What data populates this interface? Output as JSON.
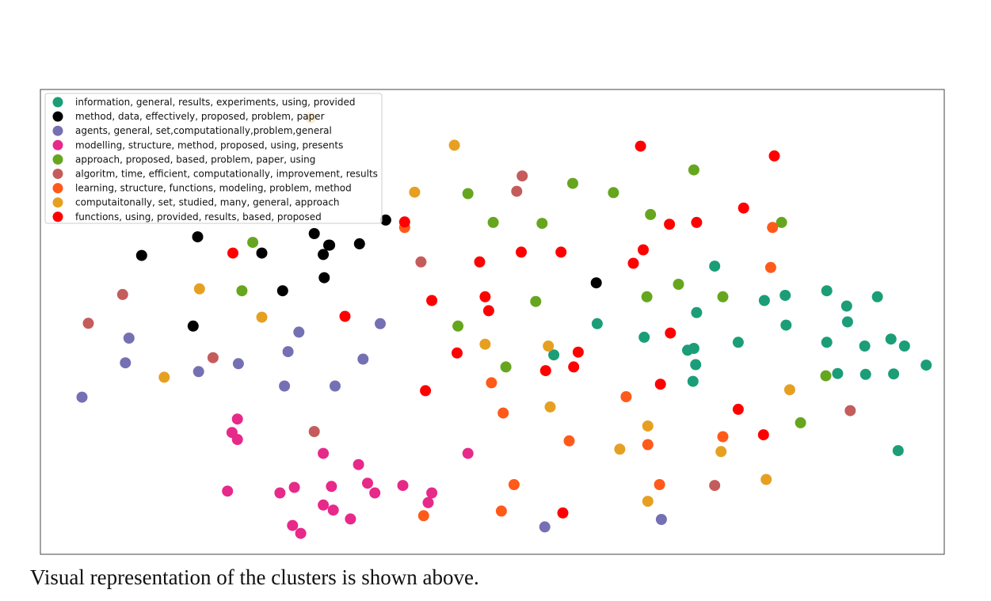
{
  "caption": "Visual representation of the clusters is shown above.",
  "chart_data": {
    "type": "scatter",
    "title": "",
    "xlabel": "",
    "ylabel": "",
    "axes_ticks": "none",
    "grid": false,
    "legend_position": "top-left",
    "xlim": [
      0,
      100
    ],
    "ylim": [
      0,
      100
    ],
    "series": [
      {
        "name": "information, general, results, experiments, using, provided",
        "color": "#1b9e77",
        "points": [
          [
            74.6,
            62
          ],
          [
            80.1,
            54.6
          ],
          [
            82.4,
            55.7
          ],
          [
            87.0,
            56.7
          ],
          [
            89.2,
            53.4
          ],
          [
            92.6,
            55.4
          ],
          [
            61.6,
            49.6
          ],
          [
            66.8,
            46.7
          ],
          [
            72.6,
            52
          ],
          [
            82.5,
            49.3
          ],
          [
            89.3,
            50
          ],
          [
            94.1,
            46.3
          ],
          [
            71.6,
            43.9
          ],
          [
            72.3,
            44.3
          ],
          [
            77.2,
            45.6
          ],
          [
            87.0,
            45.6
          ],
          [
            91.2,
            44.8
          ],
          [
            95.6,
            44.8
          ],
          [
            72.5,
            40.8
          ],
          [
            72.2,
            37.2
          ],
          [
            94.4,
            38.8
          ],
          [
            91.3,
            38.7
          ],
          [
            88.2,
            38.9
          ],
          [
            94.9,
            22.3
          ],
          [
            98.0,
            40.7
          ],
          [
            56.8,
            42.9
          ]
        ]
      },
      {
        "name": "method, data, effectively, proposed, problem, paper",
        "color": "#000000",
        "points": [
          [
            11.2,
            64.3
          ],
          [
            17.4,
            68.3
          ],
          [
            24.5,
            64.8
          ],
          [
            30.3,
            69.0
          ],
          [
            31.3,
            64.5
          ],
          [
            32.0,
            66.5
          ],
          [
            31.9,
            66.5
          ],
          [
            35.3,
            66.8
          ],
          [
            31.4,
            59.5
          ],
          [
            26.8,
            56.7
          ],
          [
            16.9,
            49.1
          ],
          [
            38.2,
            71.9
          ],
          [
            61.5,
            58.4
          ]
        ]
      },
      {
        "name": "agents, general, set,computationally,problem,general",
        "color": "#7570b3",
        "points": [
          [
            9.8,
            46.5
          ],
          [
            9.4,
            41.2
          ],
          [
            4.6,
            33.8
          ],
          [
            17.5,
            39.3
          ],
          [
            21.9,
            41
          ],
          [
            27.4,
            43.6
          ],
          [
            28.6,
            47.8
          ],
          [
            35.7,
            42
          ],
          [
            37.6,
            49.6
          ],
          [
            27.0,
            36.2
          ],
          [
            32.6,
            36.2
          ],
          [
            55.8,
            5.9
          ],
          [
            68.7,
            7.5
          ]
        ]
      },
      {
        "name": "modelling, structure, method, proposed, using, presents",
        "color": "#e7298a",
        "points": [
          [
            21.8,
            29.1
          ],
          [
            21.2,
            26.2
          ],
          [
            21.8,
            24.7
          ],
          [
            31.3,
            21.7
          ],
          [
            20.7,
            13.6
          ],
          [
            26.5,
            13.2
          ],
          [
            28.1,
            14.4
          ],
          [
            32.2,
            14.6
          ],
          [
            35.2,
            19.3
          ],
          [
            36.2,
            15.3
          ],
          [
            37.0,
            13.2
          ],
          [
            31.3,
            10.6
          ],
          [
            32.4,
            9.5
          ],
          [
            34.3,
            7.6
          ],
          [
            27.9,
            6.2
          ],
          [
            28.8,
            4.5
          ],
          [
            40.1,
            14.8
          ],
          [
            43.3,
            13.2
          ],
          [
            42.9,
            11.1
          ],
          [
            47.3,
            21.7
          ]
        ]
      },
      {
        "name": "approach, proposed, based, problem, paper, using",
        "color": "#66a61e",
        "points": [
          [
            47.3,
            77.6
          ],
          [
            50.1,
            71.4
          ],
          [
            58.9,
            79.8
          ],
          [
            63.4,
            77.8
          ],
          [
            72.3,
            82.7
          ],
          [
            67.5,
            73.1
          ],
          [
            82.0,
            71.4
          ],
          [
            55.5,
            71.2
          ],
          [
            23.5,
            67.1
          ],
          [
            22.3,
            56.7
          ],
          [
            54.8,
            54.4
          ],
          [
            67.1,
            55.4
          ],
          [
            70.6,
            58.1
          ],
          [
            75.5,
            55.4
          ],
          [
            46.2,
            49.1
          ],
          [
            51.5,
            40.3
          ],
          [
            86.9,
            38.4
          ],
          [
            84.1,
            28.3
          ]
        ]
      },
      {
        "name": "algoritm, time, efficient, computationally, improvement, results",
        "color": "#d95f02",
        "fill": "#c55c5c",
        "points": [
          [
            53.3,
            81.4
          ],
          [
            52.7,
            78.1
          ],
          [
            9.1,
            55.9
          ],
          [
            5.3,
            49.7
          ],
          [
            42.1,
            62.9
          ],
          [
            19.1,
            42.3
          ],
          [
            30.3,
            26.4
          ],
          [
            89.6,
            30.9
          ],
          [
            74.6,
            14.8
          ]
        ]
      },
      {
        "name": "learning, structure, functions, modeling, problem, method",
        "color": "#ff5a1a",
        "points": [
          [
            40.3,
            70.3
          ],
          [
            81.0,
            70.3
          ],
          [
            80.8,
            61.7
          ],
          [
            49.9,
            36.9
          ],
          [
            51.2,
            30.4
          ],
          [
            64.8,
            33.9
          ],
          [
            58.5,
            24.4
          ],
          [
            67.2,
            23.6
          ],
          [
            75.5,
            25.3
          ],
          [
            52.4,
            15.0
          ],
          [
            68.5,
            15.0
          ],
          [
            51.0,
            9.3
          ],
          [
            42.4,
            8.3
          ]
        ]
      },
      {
        "name": "computaitonally, set, studied, many, general, approach",
        "color": "#e6a021",
        "points": [
          [
            45.8,
            88.0
          ],
          [
            41.4,
            77.9
          ],
          [
            29.9,
            93.9
          ],
          [
            17.6,
            57.1
          ],
          [
            24.5,
            51.0
          ],
          [
            13.7,
            38.1
          ],
          [
            49.2,
            45.2
          ],
          [
            56.2,
            44.8
          ],
          [
            56.4,
            31.7
          ],
          [
            67.2,
            27.6
          ],
          [
            64.1,
            22.6
          ],
          [
            75.3,
            22.1
          ],
          [
            82.9,
            35.4
          ],
          [
            80.3,
            16.1
          ],
          [
            67.2,
            11.4
          ]
        ]
      },
      {
        "name": "functions, using, provided, results, based, proposed",
        "color": "#ff0000",
        "points": [
          [
            66.4,
            87.8
          ],
          [
            81.2,
            85.7
          ],
          [
            77.8,
            74.5
          ],
          [
            69.6,
            71.0
          ],
          [
            72.6,
            71.4
          ],
          [
            53.2,
            65.0
          ],
          [
            57.6,
            65.0
          ],
          [
            48.6,
            62.9
          ],
          [
            66.7,
            65.5
          ],
          [
            65.6,
            62.6
          ],
          [
            21.3,
            64.8
          ],
          [
            43.3,
            54.6
          ],
          [
            49.2,
            55.4
          ],
          [
            49.6,
            52.4
          ],
          [
            33.7,
            51.2
          ],
          [
            46.1,
            43.3
          ],
          [
            55.9,
            39.5
          ],
          [
            59.0,
            40.3
          ],
          [
            59.5,
            43.5
          ],
          [
            69.7,
            47.6
          ],
          [
            42.6,
            35.2
          ],
          [
            77.2,
            31.2
          ],
          [
            68.6,
            36.6
          ],
          [
            80.0,
            25.7
          ],
          [
            57.8,
            8.9
          ],
          [
            40.3,
            71.5
          ]
        ]
      }
    ]
  }
}
